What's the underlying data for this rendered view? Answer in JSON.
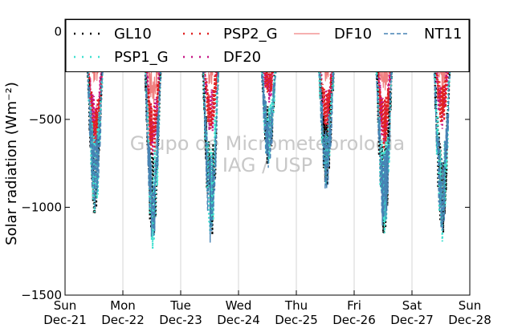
{
  "chart_data": {
    "type": "line",
    "title": "",
    "xlabel": "",
    "ylabel": "Solar radiation (Wm⁻²)",
    "ylim": [
      -1500,
      70
    ],
    "yticks": [
      0,
      -500,
      -1000,
      -1500
    ],
    "ytick_labels": [
      "0",
      "−500",
      "−1000",
      "−1500"
    ],
    "xticks": [
      {
        "day": 0,
        "weekday": "Sun",
        "date": "Dec-21"
      },
      {
        "day": 1,
        "weekday": "Mon",
        "date": "Dec-22"
      },
      {
        "day": 2,
        "weekday": "Tue",
        "date": "Dec-23"
      },
      {
        "day": 3,
        "weekday": "Wed",
        "date": "Dec-24"
      },
      {
        "day": 4,
        "weekday": "Thu",
        "date": "Dec-25"
      },
      {
        "day": 5,
        "weekday": "Fri",
        "date": "Dec-26"
      },
      {
        "day": 6,
        "weekday": "Sat",
        "date": "Dec-27"
      },
      {
        "day": 7,
        "weekday": "Sun",
        "date": "Dec-28"
      }
    ],
    "grid": "vertical",
    "legend_position": "top",
    "watermark": [
      "Grupo de Micrometeorologia",
      "IAG / USP"
    ],
    "series": [
      {
        "name": "GL10",
        "style": "dotted",
        "color": "#000000",
        "daily_min": [
          -1050,
          -1260,
          -1210,
          -780,
          -930,
          -1180,
          -1210
        ]
      },
      {
        "name": "PSP1_G",
        "style": "dotted",
        "color": "#40e0d0",
        "daily_min": [
          -1060,
          -1250,
          -1200,
          -770,
          -930,
          -1170,
          -1200
        ]
      },
      {
        "name": "PSP2_G",
        "style": "dotted",
        "color": "#e02020",
        "daily_min": [
          -760,
          -750,
          -600,
          -380,
          -600,
          -700,
          -560
        ]
      },
      {
        "name": "DF10",
        "style": "solid",
        "color": "#f08080",
        "daily_min": [
          -300,
          -420,
          -320,
          -280,
          -300,
          -340,
          -330
        ]
      },
      {
        "name": "DF20",
        "style": "dotted",
        "color": "#c71585",
        "daily_min": [
          -680,
          -740,
          -600,
          -420,
          -620,
          -690,
          -560
        ]
      },
      {
        "name": "NT11",
        "style": "dashed",
        "color": "#4682b4",
        "daily_min": [
          -1050,
          -1250,
          -1220,
          -790,
          -930,
          -1180,
          -1220
        ]
      }
    ]
  }
}
